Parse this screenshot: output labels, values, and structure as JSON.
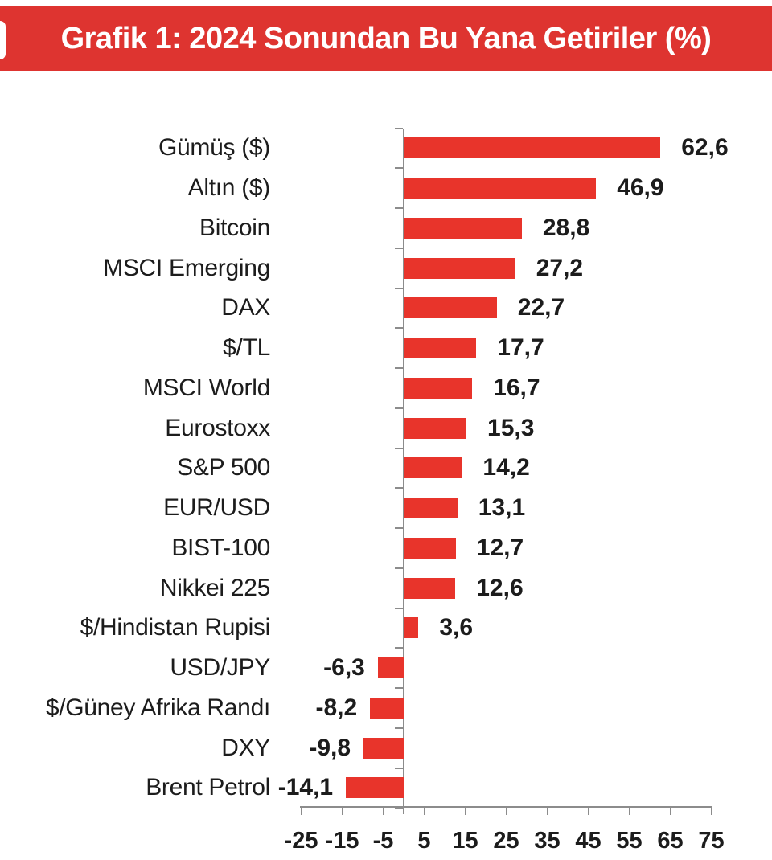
{
  "header": {
    "title": "Grafik 1: 2024 Sonundan Bu Yana Getiriler (%)",
    "bg_color": "#de3430",
    "text_color": "#ffffff"
  },
  "chart_data": {
    "type": "bar",
    "orientation": "horizontal",
    "title": "Grafik 1: 2024 Sonundan Bu Yana Getiriler (%)",
    "unit": "%",
    "categories": [
      "Gümüş ($)",
      "Altın ($)",
      "Bitcoin",
      "MSCI Emerging",
      "DAX",
      "$/TL",
      "MSCI World",
      "Eurostoxx",
      "S&P 500",
      "EUR/USD",
      "BIST-100",
      "Nikkei 225",
      "$/Hindistan Rupisi",
      "USD/JPY",
      "$/Güney Afrika Randı",
      "DXY",
      "Brent Petrol"
    ],
    "values": [
      62.6,
      46.9,
      28.8,
      27.2,
      22.7,
      17.7,
      16.7,
      15.3,
      14.2,
      13.1,
      12.7,
      12.6,
      3.6,
      -6.3,
      -8.2,
      -9.8,
      -14.1
    ],
    "value_labels": [
      "62,6",
      "46,9",
      "28,8",
      "27,2",
      "22,7",
      "17,7",
      "16,7",
      "15,3",
      "14,2",
      "13,1",
      "12,7",
      "12,6",
      "3,6",
      "-6,3",
      "-8,2",
      "-9,8",
      "-14,1"
    ],
    "xlim": [
      -25,
      75
    ],
    "x_ticks": [
      -25,
      -15,
      -5,
      5,
      15,
      25,
      35,
      45,
      55,
      65,
      75
    ],
    "x_tick_labels": [
      "-25",
      "-15",
      "-5",
      "5",
      "15",
      "25",
      "35",
      "45",
      "55",
      "65",
      "75"
    ],
    "grid": false,
    "legend": null,
    "value_label_position": "outside-end",
    "bar_color": "#e8342b",
    "axis_color": "#8c8c8c",
    "text_color": "#1c1c1c"
  }
}
